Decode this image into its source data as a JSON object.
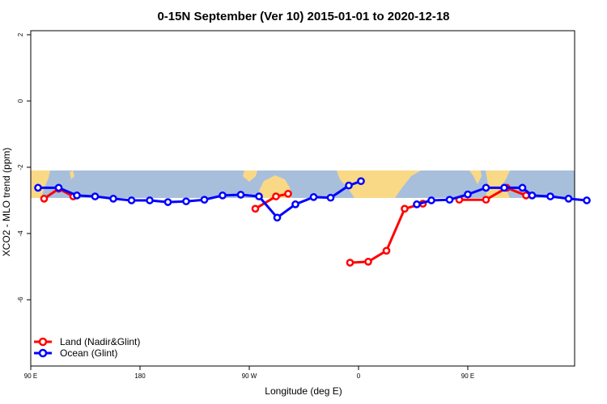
{
  "chart_data": {
    "type": "line",
    "title": "0-15N September (Ver 10)   2015-01-01 to 2020-12-18",
    "xlabel": "Longitude (deg E)",
    "ylabel": "XCO2 - MLO trend (ppm)",
    "xlim": [
      90,
      450
    ],
    "ylim": [
      -8,
      2
    ],
    "x_ticks": [
      {
        "value": 90,
        "label": "90 E"
      },
      {
        "value": 180,
        "label": "180"
      },
      {
        "value": 270,
        "label": "90 W"
      },
      {
        "value": 360,
        "label": "0"
      },
      {
        "value": 450,
        "label": "90 E"
      },
      {
        "value": 540,
        "label": "180"
      }
    ],
    "y_ticks": [
      {
        "value": 2,
        "label": "2"
      },
      {
        "value": 0,
        "label": "0"
      },
      {
        "value": -2,
        "label": "-2"
      },
      {
        "value": -4,
        "label": "-4"
      },
      {
        "value": -6,
        "label": "-6"
      }
    ],
    "grid": false,
    "legend_position": "bottom-left",
    "background_map": {
      "lat_range": [
        0,
        15
      ],
      "ocean_color": "#a8bfdc",
      "land_color": "#f9d985"
    },
    "series": [
      {
        "name": "Land (Nadir&Glint)",
        "color": "#ff0000",
        "segments": [
          [
            {
              "x": 101,
              "y": -2.95
            },
            {
              "x": 113,
              "y": -2.65
            },
            {
              "x": 125,
              "y": -2.88
            }
          ],
          [
            {
              "x": 275,
              "y": -3.25
            },
            {
              "x": 292,
              "y": -2.88
            },
            {
              "x": 302,
              "y": -2.8
            }
          ],
          [
            {
              "x": 353,
              "y": -4.88
            },
            {
              "x": 368,
              "y": -4.85
            },
            {
              "x": 383,
              "y": -4.52
            },
            {
              "x": 398,
              "y": -3.25
            },
            {
              "x": 413,
              "y": -3.1
            }
          ],
          [
            {
              "x": 443,
              "y": -2.98
            },
            {
              "x": 465,
              "y": -2.98
            },
            {
              "x": 482,
              "y": -2.62
            },
            {
              "x": 498,
              "y": -2.85
            }
          ]
        ]
      },
      {
        "name": "Ocean (Glint)",
        "color": "#0000ff",
        "segments": [
          [
            {
              "x": 96,
              "y": -2.62
            },
            {
              "x": 113,
              "y": -2.62
            },
            {
              "x": 128,
              "y": -2.85
            },
            {
              "x": 143,
              "y": -2.88
            },
            {
              "x": 158,
              "y": -2.95
            },
            {
              "x": 173,
              "y": -3.0
            },
            {
              "x": 188,
              "y": -3.0
            },
            {
              "x": 203,
              "y": -3.05
            },
            {
              "x": 218,
              "y": -3.03
            },
            {
              "x": 233,
              "y": -2.98
            },
            {
              "x": 248,
              "y": -2.85
            },
            {
              "x": 263,
              "y": -2.83
            },
            {
              "x": 278,
              "y": -2.88
            },
            {
              "x": 293,
              "y": -3.52
            },
            {
              "x": 308,
              "y": -3.12
            },
            {
              "x": 323,
              "y": -2.9
            },
            {
              "x": 337,
              "y": -2.92
            },
            {
              "x": 352,
              "y": -2.55
            },
            {
              "x": 362,
              "y": -2.42
            }
          ],
          [
            {
              "x": 408,
              "y": -3.12
            },
            {
              "x": 420,
              "y": -3.0
            },
            {
              "x": 435,
              "y": -2.98
            },
            {
              "x": 450,
              "y": -2.82
            },
            {
              "x": 465,
              "y": -2.62
            },
            {
              "x": 480,
              "y": -2.62
            },
            {
              "x": 495,
              "y": -2.62
            },
            {
              "x": 503,
              "y": -2.85
            },
            {
              "x": 518,
              "y": -2.88
            },
            {
              "x": 533,
              "y": -2.95
            },
            {
              "x": 548,
              "y": -3.0
            }
          ]
        ]
      }
    ]
  }
}
